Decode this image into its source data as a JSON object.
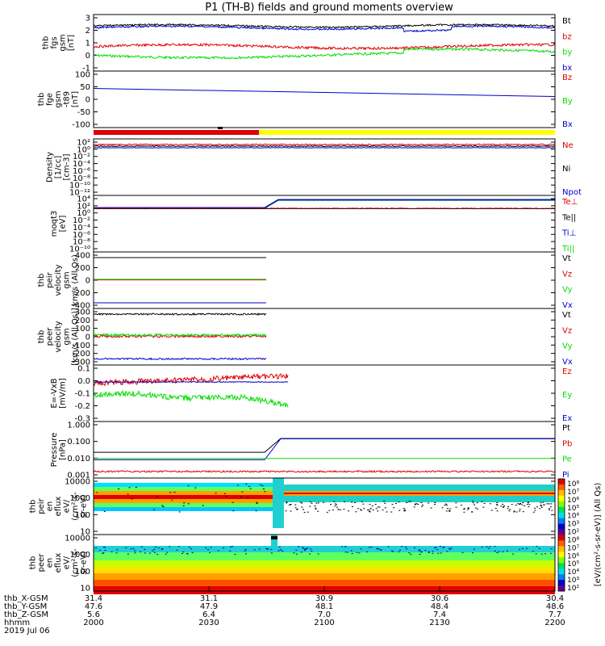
{
  "title": "P1 (TH-B) fields and ground moments overview",
  "colors": {
    "black": "#000000",
    "red": "#e00000",
    "green": "#00dd00",
    "blue": "#0000cc",
    "dkgreen": "#006060",
    "yellow": "#ffff00"
  },
  "chart_data": [
    {
      "id": "fgs",
      "type": "line",
      "ylabel": [
        "thb",
        "fgs",
        "gsm",
        "[nT]"
      ],
      "yticks": [
        "3",
        "2",
        "1",
        "0",
        "-1"
      ],
      "ylim": [
        -1,
        3
      ],
      "legend": [
        {
          "label": "Bt",
          "color": "black"
        },
        {
          "label": "bz",
          "color": "red"
        },
        {
          "label": "by",
          "color": "green"
        },
        {
          "label": "bx",
          "color": "blue"
        }
      ]
    },
    {
      "id": "fge",
      "type": "line",
      "ylabel": [
        "thb",
        "fge",
        "gsm",
        "-t89",
        "[nT]"
      ],
      "yticks": [
        "100",
        "50",
        "0",
        "-50",
        "-100"
      ],
      "ylim": [
        -120,
        110
      ],
      "legend": [
        {
          "label": "Bz",
          "color": "red"
        },
        {
          "label": "By",
          "color": "green"
        },
        {
          "label": "Bx",
          "color": "blue"
        }
      ]
    },
    {
      "id": "density",
      "type": "line",
      "ylabel": [
        "Density",
        "[1/cc]",
        "[cm-3]"
      ],
      "yticks": [
        "10²",
        "10⁰",
        "10⁻²",
        "10⁻⁴",
        "10⁻⁶",
        "10⁻⁸",
        "10⁻¹⁰",
        "10⁻¹²"
      ],
      "legend": [
        {
          "label": "Ne",
          "color": "red"
        },
        {
          "label": "Ni",
          "color": "black"
        },
        {
          "label": "Npot",
          "color": "blue"
        }
      ]
    },
    {
      "id": "temp",
      "type": "line",
      "ylabel": [
        "moqt3",
        "[eV]"
      ],
      "yticks": [
        "10⁴",
        "10²",
        "10⁰",
        "10⁻²",
        "10⁻⁴",
        "10⁻⁶",
        "10⁻⁸",
        "10⁻¹⁰"
      ],
      "legend": [
        {
          "label": "Te⊥",
          "color": "red"
        },
        {
          "label": "Te||",
          "color": "black"
        },
        {
          "label": "Ti⊥",
          "color": "blue"
        },
        {
          "label": "Ti||",
          "color": "green"
        }
      ]
    },
    {
      "id": "peir",
      "type": "line",
      "ylabel": [
        "thb",
        "peir",
        "velocity",
        "gsm",
        "km/s (All Qs)"
      ],
      "yticks": [
        "400",
        "200",
        "0",
        "-200",
        "-400"
      ],
      "ylim": [
        -420,
        420
      ],
      "legend": [
        {
          "label": "Vt",
          "color": "black"
        },
        {
          "label": "Vz",
          "color": "red"
        },
        {
          "label": "Vy",
          "color": "green"
        },
        {
          "label": "Vx",
          "color": "blue"
        }
      ]
    },
    {
      "id": "peer",
      "type": "line",
      "ylabel": [
        "thb",
        "peer",
        "velocity",
        "gsm",
        "[km/s (All Qs)]"
      ],
      "yticks": [
        "300",
        "200",
        "100",
        "0",
        "-100",
        "-200",
        "-300"
      ],
      "ylim": [
        -300,
        300
      ],
      "legend": [
        {
          "label": "Vt",
          "color": "black"
        },
        {
          "label": "Vz",
          "color": "red"
        },
        {
          "label": "Vy",
          "color": "green"
        },
        {
          "label": "Vx",
          "color": "blue"
        }
      ]
    },
    {
      "id": "efield",
      "type": "line",
      "ylabel": [
        "E=-VxB",
        "[mV/m]"
      ],
      "yticks": [
        "0.1",
        "0.0",
        "-0.1",
        "-0.2",
        "-0.3"
      ],
      "ylim": [
        -0.3,
        0.1
      ],
      "legend": [
        {
          "label": "Ez",
          "color": "red"
        },
        {
          "label": "Ey",
          "color": "green"
        },
        {
          "label": "Ex",
          "color": "blue"
        }
      ]
    },
    {
      "id": "pressure",
      "type": "line",
      "ylabel": [
        "Pressure",
        "[nPa]"
      ],
      "yticks": [
        "1.000",
        "0.100",
        "0.010",
        "0.001"
      ],
      "legend": [
        {
          "label": "Pt",
          "color": "black"
        },
        {
          "label": "Pb",
          "color": "red"
        },
        {
          "label": "Pe",
          "color": "green"
        },
        {
          "label": "Pi",
          "color": "blue"
        }
      ]
    },
    {
      "id": "peir_spec",
      "type": "heatmap",
      "ylabel": [
        "thb",
        "peir",
        "en",
        "eflux",
        "eV/",
        "(cm²-s-",
        "sr-eV)"
      ],
      "yticks": [
        "10000",
        "1000",
        "100",
        "10"
      ]
    },
    {
      "id": "peer_spec",
      "type": "heatmap",
      "ylabel": [
        "thb",
        "peer",
        "en",
        "eflux",
        "eV/",
        "(cm²-s-",
        "sr-eV)"
      ],
      "yticks": [
        "10000",
        "1000",
        "100",
        "10"
      ]
    }
  ],
  "colorbar": {
    "ticks": [
      "10⁸",
      "10⁷",
      "10⁶",
      "10⁵",
      "10⁴",
      "10³",
      "10²",
      "10⁸",
      "10⁷",
      "10⁶",
      "10⁵",
      "10⁴",
      "10³",
      "10²"
    ],
    "label": "[eV/(cm²-s-sr-eV)] (All Qs)"
  },
  "axis": {
    "labels": [
      "thb_X-GSM",
      "thb_Y-GSM",
      "thb_Z-GSM",
      "hhmm",
      "2019 Jul 06"
    ],
    "columns": [
      {
        "x": "31.4",
        "y": "47.6",
        "z": "5.6",
        "hhmm": "2000"
      },
      {
        "x": "31.1",
        "y": "47.9",
        "z": "6.4",
        "hhmm": "2030"
      },
      {
        "x": "30.9",
        "y": "48.1",
        "z": "7.0",
        "hhmm": "2100"
      },
      {
        "x": "30.6",
        "y": "48.4",
        "z": "7.4",
        "hhmm": "2130"
      },
      {
        "x": "30.4",
        "y": "48.6",
        "z": "7.7",
        "hhmm": "2200"
      }
    ]
  }
}
